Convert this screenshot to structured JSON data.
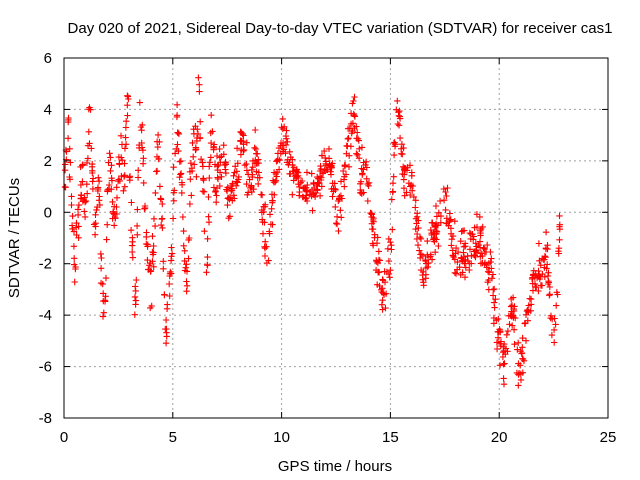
{
  "chart_data": {
    "type": "scatter",
    "title": "Day 020 of 2021, Sidereal Day-to-day VTEC variation (SDTVAR) for receiver cas1",
    "xlabel": "GPS time / hours",
    "ylabel": "SDTVAR / TECUs",
    "xlim": [
      0,
      25
    ],
    "ylim": [
      -8,
      6
    ],
    "xticks": [
      0,
      5,
      10,
      15,
      20,
      25
    ],
    "yticks": [
      -8,
      -6,
      -4,
      -2,
      0,
      2,
      4,
      6
    ],
    "grid": true,
    "marker": "plus",
    "color": "#ff0000",
    "series": [
      {
        "name": "SDTVAR",
        "trace_x": [
          0.0,
          0.1,
          0.2,
          0.3,
          0.4,
          0.5,
          0.6,
          0.7,
          0.8,
          0.9,
          1.0,
          1.1,
          1.2,
          1.3,
          1.4,
          1.5,
          1.6,
          1.7,
          1.8,
          1.9,
          2.0,
          2.1,
          2.2,
          2.3,
          2.4,
          2.5,
          2.6,
          2.7,
          2.8,
          2.9,
          3.0,
          3.1,
          3.2,
          3.3,
          3.4,
          3.5,
          3.6,
          3.7,
          3.8,
          3.9,
          4.0,
          4.1,
          4.2,
          4.3,
          4.4,
          4.5,
          4.6,
          4.7,
          4.8,
          4.9,
          5.0,
          5.1,
          5.2,
          5.3,
          5.4,
          5.5,
          5.6,
          5.7,
          5.8,
          5.9,
          6.0,
          6.1,
          6.2,
          6.3,
          6.4,
          6.5,
          6.6,
          6.7,
          6.8,
          6.9,
          7.0,
          7.3,
          7.6,
          7.9,
          8.2,
          8.5,
          8.8,
          9.1,
          9.4,
          9.7,
          10.0,
          10.2,
          10.4,
          10.6,
          11.0,
          11.5,
          11.8,
          12.2,
          12.6,
          13.0,
          13.3,
          13.6,
          14.0,
          14.3,
          14.6,
          15.0,
          15.3,
          15.6,
          16.0,
          16.5,
          17.0,
          17.5,
          18.0,
          18.5,
          19.0,
          19.3,
          19.6,
          20.0,
          20.2,
          20.4,
          20.6,
          20.8,
          21.0,
          21.3,
          21.6,
          21.9,
          22.2,
          22.5,
          22.8
        ],
        "trace_y": [
          0.3,
          2.2,
          3.4,
          1.0,
          -1.0,
          -1.8,
          0.2,
          -0.5,
          1.2,
          0.8,
          0.5,
          2.5,
          3.8,
          1.5,
          -0.5,
          0.3,
          1.5,
          -2.0,
          -3.5,
          -3.8,
          0.8,
          2.0,
          1.2,
          -0.5,
          0.0,
          1.5,
          2.5,
          1.0,
          1.8,
          4.8,
          2.0,
          -0.5,
          -2.5,
          -3.8,
          1.5,
          3.5,
          3.0,
          0.0,
          -1.0,
          -2.5,
          -3.0,
          -1.5,
          0.5,
          2.5,
          1.5,
          0.0,
          -2.5,
          -4.5,
          -3.5,
          -2.0,
          0.0,
          2.0,
          3.8,
          2.5,
          1.0,
          -1.0,
          -2.0,
          -3.0,
          1.0,
          2.5,
          3.0,
          2.0,
          5.0,
          2.0,
          1.0,
          -1.0,
          -2.0,
          2.0,
          3.0,
          1.5,
          1.0,
          2.0,
          0.5,
          1.5,
          3.0,
          1.0,
          2.5,
          0.0,
          -1.5,
          1.5,
          3.0,
          2.5,
          1.8,
          1.5,
          1.0,
          0.8,
          1.5,
          2.0,
          -0.5,
          2.5,
          3.8,
          1.5,
          1.0,
          -1.0,
          -3.0,
          -2.0,
          4.5,
          1.8,
          1.0,
          -2.5,
          -1.0,
          0.5,
          -1.5,
          -1.8,
          -1.0,
          -1.5,
          -2.5,
          -5.0,
          -6.0,
          -4.5,
          -3.5,
          -5.5,
          -6.3,
          -4.0,
          -2.5,
          -2.0,
          -1.5,
          -5.5,
          -0.5
        ],
        "spread": [
          1.2,
          1.2,
          1.3,
          1.5,
          1.3,
          1.2,
          1.0,
          1.2,
          1.2,
          1.2,
          1.2,
          1.3,
          1.2,
          1.0,
          1.0,
          1.0,
          1.2,
          1.0,
          0.9,
          0.8,
          1.0,
          1.0,
          1.0,
          1.0,
          1.0,
          1.0,
          1.2,
          1.2,
          1.2,
          1.3,
          1.2,
          1.3,
          1.3,
          1.3,
          1.2,
          1.3,
          1.3,
          1.2,
          1.2,
          1.3,
          1.3,
          1.3,
          1.2,
          1.2,
          1.2,
          1.3,
          1.3,
          1.3,
          1.2,
          1.2,
          1.2,
          1.2,
          1.2,
          1.2,
          1.2,
          1.3,
          1.3,
          1.2,
          1.2,
          1.3,
          1.2,
          1.3,
          1.2,
          1.3,
          1.3,
          1.2,
          1.2,
          1.2,
          1.2,
          1.2,
          1.2,
          1.2,
          1.2,
          1.2,
          1.3,
          1.3,
          1.3,
          1.3,
          1.3,
          1.3,
          1.2,
          1.2,
          1.2,
          1.0,
          0.8,
          0.8,
          1.0,
          1.0,
          1.2,
          1.2,
          1.3,
          1.2,
          1.2,
          1.3,
          1.3,
          1.3,
          1.3,
          1.3,
          1.2,
          1.2,
          1.2,
          1.2,
          1.2,
          1.2,
          1.2,
          1.0,
          1.2,
          1.2,
          1.2,
          1.2,
          1.2,
          1.2,
          1.2,
          1.2,
          1.2,
          1.2,
          1.2,
          1.2,
          1.2
        ],
        "samples_per_unit": 5,
        "seed": 20210120
      }
    ]
  }
}
